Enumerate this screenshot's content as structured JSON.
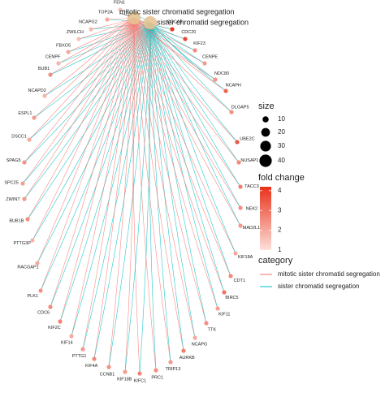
{
  "nodes": {
    "categories": [
      {
        "label": "mitotic sister chromatid segregation",
        "size": 46
      },
      {
        "label": "sister chromatid segregation",
        "size": 46
      }
    ],
    "genes": [
      {
        "label": "FEN1",
        "fold_change": 1.5
      },
      {
        "label": "TOP2A",
        "fold_change": 2.0
      },
      {
        "label": "NCAPG2",
        "fold_change": 1.7
      },
      {
        "label": "ZWILCH",
        "fold_change": 1.6
      },
      {
        "label": "FBXO5",
        "fold_change": 2.0
      },
      {
        "label": "CENPF",
        "fold_change": 1.8
      },
      {
        "label": "BUB1",
        "fold_change": 2.5
      },
      {
        "label": "NCAPD2",
        "fold_change": 1.8
      },
      {
        "label": "ESPL1",
        "fold_change": 2.3
      },
      {
        "label": "DSCC1",
        "fold_change": 2.0
      },
      {
        "label": "SPAG5",
        "fold_change": 2.4
      },
      {
        "label": "SPC25",
        "fold_change": 2.2
      },
      {
        "label": "ZWINT",
        "fold_change": 2.3
      },
      {
        "label": "BUB1B",
        "fold_change": 2.5
      },
      {
        "label": "PTTG3P",
        "fold_change": 1.8
      },
      {
        "label": "RACGAP1",
        "fold_change": 2.0
      },
      {
        "label": "PLK1",
        "fold_change": 2.4
      },
      {
        "label": "CDC6",
        "fold_change": 2.6
      },
      {
        "label": "KIF2C",
        "fold_change": 2.7
      },
      {
        "label": "KIF14",
        "fold_change": 2.0
      },
      {
        "label": "PTTG1",
        "fold_change": 2.3
      },
      {
        "label": "KIF4A",
        "fold_change": 2.6
      },
      {
        "label": "CCNB1",
        "fold_change": 2.4
      },
      {
        "label": "KIF18B",
        "fold_change": 2.2
      },
      {
        "label": "KIFC1",
        "fold_change": 2.7
      },
      {
        "label": "PRC1",
        "fold_change": 2.5
      },
      {
        "label": "TRIP13",
        "fold_change": 2.3
      },
      {
        "label": "AURKB",
        "fold_change": 2.8
      },
      {
        "label": "NCAPG",
        "fold_change": 2.0
      },
      {
        "label": "TTK",
        "fold_change": 2.5
      },
      {
        "label": "KIF11",
        "fold_change": 2.2
      },
      {
        "label": "BIRC5",
        "fold_change": 3.0
      },
      {
        "label": "CDT1",
        "fold_change": 2.6
      },
      {
        "label": "KIF18A",
        "fold_change": 2.0
      },
      {
        "label": "MAD2L1",
        "fold_change": 2.3
      },
      {
        "label": "NEK2",
        "fold_change": 2.5
      },
      {
        "label": "TACC3",
        "fold_change": 2.8
      },
      {
        "label": "NUSAP1",
        "fold_change": 2.6
      },
      {
        "label": "UBE2C",
        "fold_change": 3.5
      },
      {
        "label": "DLGAP5",
        "fold_change": 2.5
      },
      {
        "label": "NCAPH",
        "fold_change": 3.3
      },
      {
        "label": "NDC80",
        "fold_change": 2.4
      },
      {
        "label": "CENPE",
        "fold_change": 2.3
      },
      {
        "label": "KIF23",
        "fold_change": 2.5
      },
      {
        "label": "CDC20",
        "fold_change": 3.8
      },
      {
        "label": "CDCA8",
        "fold_change": 4.1
      }
    ]
  },
  "legend": {
    "size_title": "size",
    "size_ticks": [
      10,
      20,
      30,
      40
    ],
    "fold_change_title": "fold change",
    "fold_change_range": [
      1,
      4.2
    ],
    "fold_change_ticks": [
      1,
      2,
      3,
      4
    ],
    "category_title": "category"
  }
}
